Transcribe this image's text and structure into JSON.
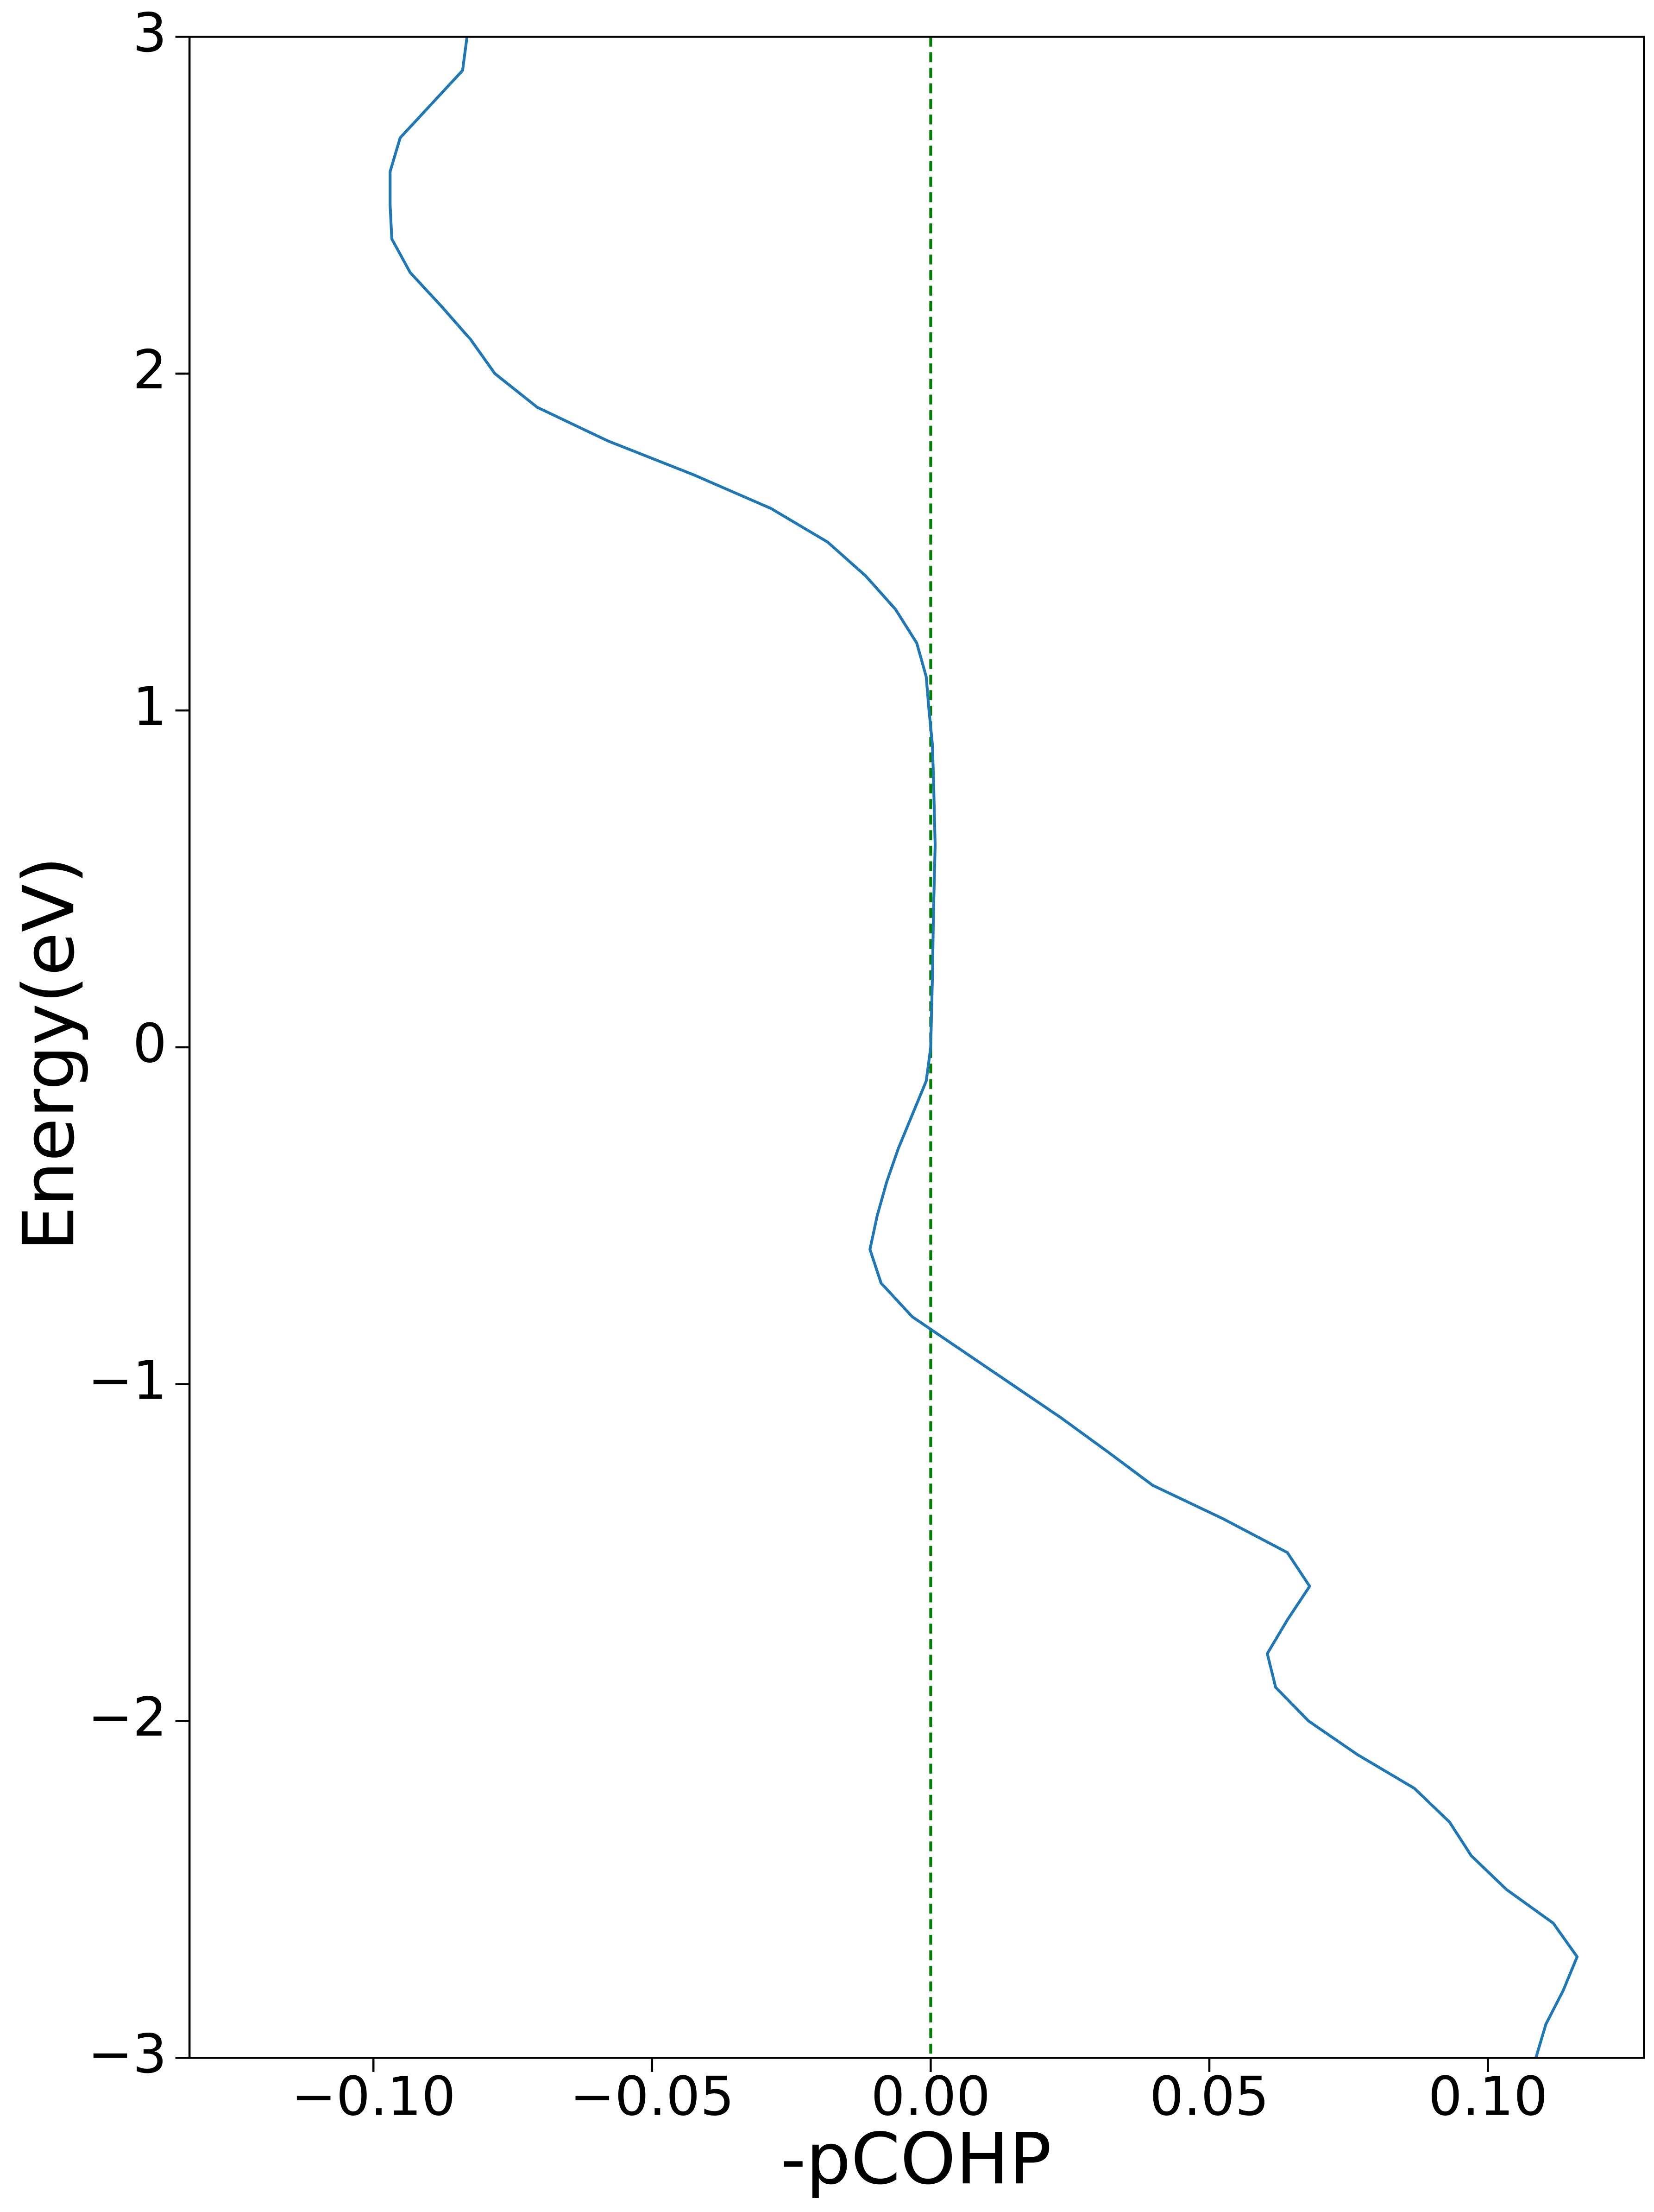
{
  "chart_data": {
    "type": "line",
    "xlabel": "-pCOHP",
    "ylabel": "Energy(eV)",
    "x": [
      -0.0832,
      -0.084,
      -0.0896,
      -0.0952,
      -0.097,
      -0.097,
      -0.0967,
      -0.0934,
      -0.0878,
      -0.0825,
      -0.0782,
      -0.0706,
      -0.0579,
      -0.0426,
      -0.0287,
      -0.0185,
      -0.0117,
      -0.0063,
      -0.0025,
      -0.0008,
      -0.0003,
      0.0003,
      0.0005,
      0.0008,
      0.0005,
      0.0003,
      0,
      -0.0008,
      -0.0033,
      -0.0058,
      -0.0079,
      -0.0096,
      -0.0109,
      -0.0089,
      -0.0033,
      0.0056,
      0.0145,
      0.0234,
      0.0317,
      0.0398,
      0.0525,
      0.064,
      0.068,
      0.064,
      0.0604,
      0.0619,
      0.0678,
      0.0766,
      0.0868,
      0.0931,
      0.097,
      0.1033,
      0.1117,
      0.116,
      0.1135,
      0.1104,
      0.1086
    ],
    "values": [
      3,
      2.9,
      2.8,
      2.7,
      2.6,
      2.5,
      2.4,
      2.3,
      2.2,
      2.1,
      2.0,
      1.9,
      1.8,
      1.7,
      1.6,
      1.5,
      1.4,
      1.3,
      1.2,
      1.1,
      1.0,
      0.9,
      0.8,
      0.6,
      0.4,
      0.2,
      0,
      -0.1,
      -0.2,
      -0.3,
      -0.4,
      -0.5,
      -0.6,
      -0.7,
      -0.8,
      -0.9,
      -1.0,
      -1.1,
      -1.2,
      -1.3,
      -1.4,
      -1.5,
      -1.6,
      -1.7,
      -1.8,
      -1.9,
      -2.0,
      -2.1,
      -2.2,
      -2.3,
      -2.4,
      -2.5,
      -2.6,
      -2.7,
      -2.8,
      -2.9,
      -3.0
    ],
    "color": "#1f77b4",
    "vline": {
      "x": 0,
      "color": "#008000"
    },
    "xlim": [
      -0.133,
      0.128
    ],
    "ylim": [
      -3,
      3
    ],
    "xticks": [
      {
        "value": -0.1,
        "label": "−0.10"
      },
      {
        "value": -0.05,
        "label": "−0.05"
      },
      {
        "value": 0,
        "label": "0.00"
      },
      {
        "value": 0.05,
        "label": "0.05"
      },
      {
        "value": 0.1,
        "label": "0.10"
      }
    ],
    "yticks": [
      {
        "value": -3,
        "label": "−3"
      },
      {
        "value": -2,
        "label": "−2"
      },
      {
        "value": -1,
        "label": "−1"
      },
      0,
      1,
      2,
      3
    ],
    "grid": false
  }
}
